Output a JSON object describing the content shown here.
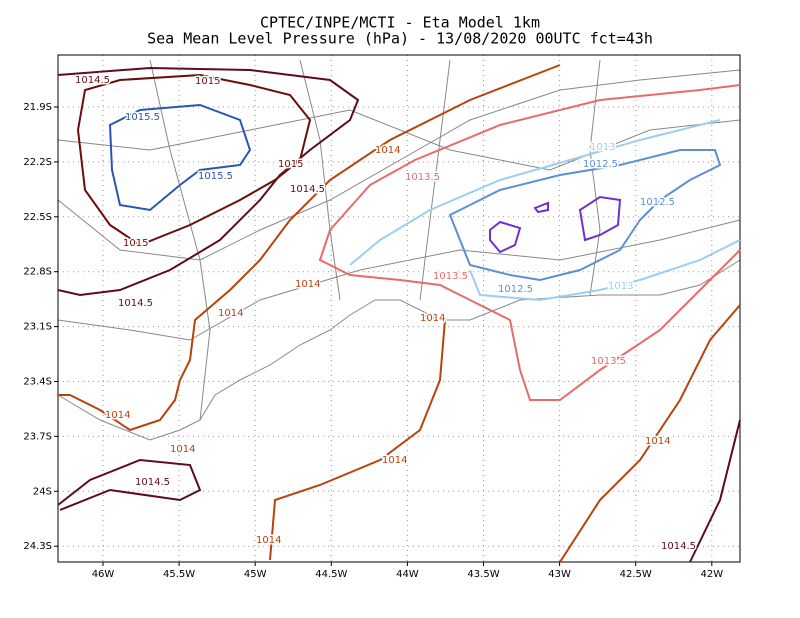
{
  "header": {
    "title": "CPTEC/INPE/MCTI -  Eta Model 1km",
    "subtitle": "Sea Mean Level Pressure (hPa) - 13/08/2020 00UTC fct=43h"
  },
  "map": {
    "lon_ticks": [
      "46W",
      "45.5W",
      "45W",
      "44.5W",
      "44W",
      "43.5W",
      "43W",
      "42.5W",
      "42W"
    ],
    "lat_ticks": [
      "21.9S",
      "22.2S",
      "22.5S",
      "22.8S",
      "23.1S",
      "23.4S",
      "23.7S",
      "24S",
      "24.3S"
    ],
    "contour_labels": [
      "1014.5",
      "1015",
      "1015.5",
      "1015.5",
      "1015",
      "1014.5",
      "1014",
      "1013.5",
      "1015",
      "1014.5",
      "1014",
      "1014",
      "1014",
      "1013.5",
      "1013",
      "1012.5",
      "1012.5",
      "1012.5",
      "1013",
      "1013.5",
      "1014",
      "1014",
      "1014",
      "1014",
      "1014.5",
      "1014.5",
      "1014"
    ]
  }
}
